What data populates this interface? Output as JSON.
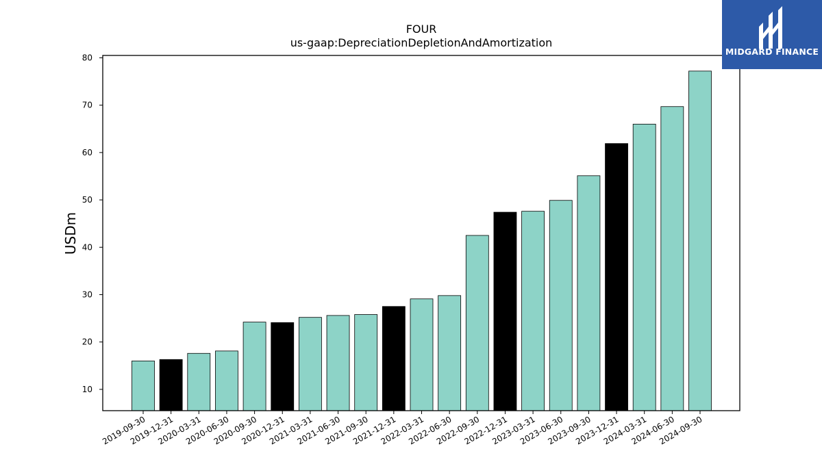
{
  "brand": {
    "name": "MIDGARD FINANCE",
    "background": "#2d5aa8"
  },
  "chart_data": {
    "type": "bar",
    "title": "FOUR",
    "subtitle": "us-gaap:DepreciationDepletionAndAmortization",
    "xlabel": "",
    "ylabel": "USDm",
    "ylim": [
      5.5,
      80.5
    ],
    "yticks": [
      10,
      20,
      30,
      40,
      50,
      60,
      70,
      80
    ],
    "grid": false,
    "colors": {
      "quarterly": "#8dd3c7",
      "annual": "#000000"
    },
    "categories": [
      "2019-09-30",
      "2019-12-31",
      "2020-03-31",
      "2020-06-30",
      "2020-09-30",
      "2020-12-31",
      "2021-03-31",
      "2021-06-30",
      "2021-09-30",
      "2021-12-31",
      "2022-03-31",
      "2022-06-30",
      "2022-09-30",
      "2022-12-31",
      "2023-03-31",
      "2023-06-30",
      "2023-09-30",
      "2023-12-31",
      "2024-03-31",
      "2024-06-30",
      "2024-09-30"
    ],
    "values": [
      16.0,
      16.3,
      17.6,
      18.1,
      24.2,
      24.1,
      25.2,
      25.6,
      25.8,
      27.5,
      29.1,
      29.8,
      42.5,
      47.4,
      47.6,
      49.9,
      55.1,
      61.9,
      66.0,
      69.7,
      77.2
    ],
    "highlight": [
      false,
      true,
      false,
      false,
      false,
      true,
      false,
      false,
      false,
      true,
      false,
      false,
      false,
      true,
      false,
      false,
      false,
      true,
      false,
      false,
      false
    ]
  }
}
